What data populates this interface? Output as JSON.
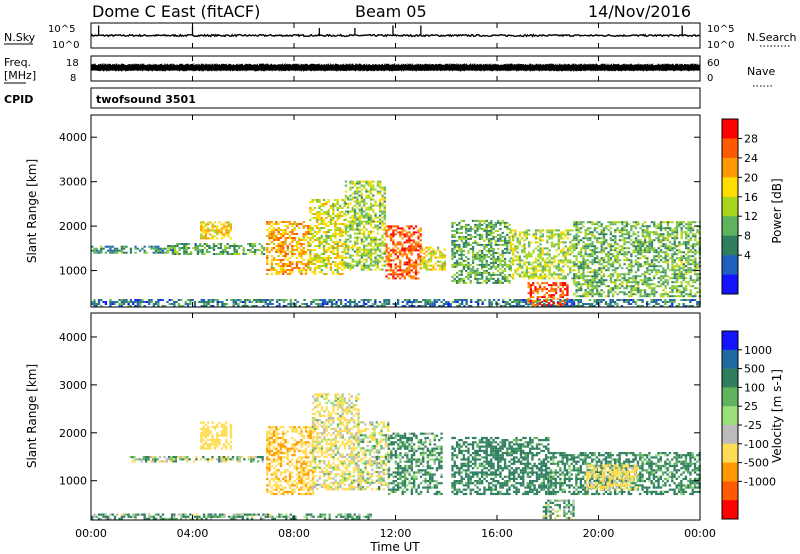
{
  "header": {
    "radar": "Dome C East (fitACF)",
    "beam": "Beam 05",
    "date": "14/Nov/2016"
  },
  "top_strips": {
    "nsky_label": "N.Sky",
    "nsearch_label": "N.Search",
    "nsky_ticks": [
      "10^5",
      "10^0"
    ],
    "nsearch_ticks": [
      "10^5",
      "10^0"
    ],
    "freq_label": "Freq.",
    "freq_unit": "[MHz]",
    "freq_ticks": [
      "18",
      "8"
    ],
    "nave_label": "Nave",
    "nave_ticks": [
      "60",
      "0"
    ],
    "cpid_label": "CPID",
    "cpid_value": "twofsound 3501"
  },
  "panels": {
    "ylabel": "Slant Range [km]",
    "yticks": [
      "4000",
      "3000",
      "2000",
      "1000"
    ],
    "xticks": [
      "00:00",
      "04:00",
      "08:00",
      "12:00",
      "16:00",
      "20:00",
      "00:00"
    ],
    "xlabel": "Time UT"
  },
  "power_scale": {
    "title": "Power [dB]",
    "ticks": [
      "28",
      "24",
      "20",
      "16",
      "12",
      "8",
      "4"
    ],
    "colors": [
      "#ff0000",
      "#ff5a00",
      "#ff9a00",
      "#ffdd00",
      "#a8d51e",
      "#5fb35f",
      "#2f7f5f",
      "#1f5fbf",
      "#1414ff"
    ]
  },
  "velocity_scale": {
    "title": "Velocity [m s-1]",
    "ticks": [
      "1000",
      "500",
      "100",
      "25",
      "-25",
      "-100",
      "-500",
      "-1000"
    ],
    "colors": [
      "#1414ff",
      "#1f6aa0",
      "#2f7f5f",
      "#5fb35f",
      "#9be07a",
      "#bbbbbb",
      "#ffdd55",
      "#ff9a00",
      "#ff5a00",
      "#ff0000"
    ]
  },
  "chart_data": [
    {
      "type": "line",
      "title": "N.Sky / N.Search",
      "x_range_hours": [
        0,
        24
      ],
      "ylim_log10": [
        0,
        5
      ],
      "y_baseline_log10": 2.5,
      "spikes": [
        {
          "x": 0.3,
          "y": 4.5
        },
        {
          "x": 4.0,
          "y": 4.5
        },
        {
          "x": 9.0,
          "y": 4.0
        },
        {
          "x": 10.4,
          "y": 4.0
        },
        {
          "x": 11.9,
          "y": 4.5
        },
        {
          "x": 13.0,
          "y": 4.5
        },
        {
          "x": 23.3,
          "y": 4.5
        }
      ]
    },
    {
      "type": "line",
      "title": "Freq. / Nave",
      "x_range_hours": [
        0,
        24
      ],
      "freq_ylim_mhz": [
        8,
        18
      ],
      "nave_ylim": [
        0,
        60
      ],
      "freq_mhz": 12.5,
      "nave_band": [
        25,
        40
      ]
    },
    {
      "type": "heatmap",
      "title": "Power [dB]",
      "x_range_hours": [
        0,
        24
      ],
      "ylim_km": [
        180,
        4500
      ],
      "clim_db": [
        0,
        32
      ],
      "patches": [
        {
          "t0": 0.0,
          "t1": 3.0,
          "r0": 1380,
          "r1": 1520,
          "db": 10
        },
        {
          "t0": 3.0,
          "t1": 6.8,
          "r0": 1350,
          "r1": 1600,
          "db": 12
        },
        {
          "t0": 0.0,
          "t1": 24.0,
          "r0": 180,
          "r1": 330,
          "db": 8
        },
        {
          "t0": 4.3,
          "t1": 5.5,
          "r0": 1700,
          "r1": 2100,
          "db": 20
        },
        {
          "t0": 6.9,
          "t1": 8.6,
          "r0": 900,
          "r1": 2100,
          "db": 22
        },
        {
          "t0": 8.6,
          "t1": 10.0,
          "r0": 900,
          "r1": 2600,
          "db": 18
        },
        {
          "t0": 10.0,
          "t1": 11.6,
          "r0": 1000,
          "r1": 3000,
          "db": 15
        },
        {
          "t0": 11.6,
          "t1": 13.0,
          "r0": 800,
          "r1": 2000,
          "db": 27
        },
        {
          "t0": 13.0,
          "t1": 13.9,
          "r0": 1000,
          "r1": 1500,
          "db": 18
        },
        {
          "t0": 14.2,
          "t1": 16.5,
          "r0": 700,
          "r1": 2100,
          "db": 12
        },
        {
          "t0": 16.5,
          "t1": 19.0,
          "r0": 800,
          "r1": 1900,
          "db": 16
        },
        {
          "t0": 17.2,
          "t1": 18.8,
          "r0": 200,
          "r1": 700,
          "db": 27
        },
        {
          "t0": 19.0,
          "t1": 24.0,
          "r0": 400,
          "r1": 2100,
          "db": 13
        }
      ]
    },
    {
      "type": "heatmap",
      "title": "Velocity [m s-1]",
      "x_range_hours": [
        0,
        24
      ],
      "ylim_km": [
        180,
        4500
      ],
      "clim_ms": [
        -1000,
        1000
      ],
      "patches": [
        {
          "t0": 1.5,
          "t1": 6.8,
          "r0": 1380,
          "r1": 1500,
          "v": 20
        },
        {
          "t0": 0.0,
          "t1": 11.0,
          "r0": 180,
          "r1": 300,
          "v": 90
        },
        {
          "t0": 4.3,
          "t1": 5.5,
          "r0": 1650,
          "r1": 2200,
          "v": -300
        },
        {
          "t0": 6.9,
          "t1": 8.7,
          "r0": 700,
          "r1": 2100,
          "v": -450
        },
        {
          "t0": 8.7,
          "t1": 10.5,
          "r0": 800,
          "r1": 2800,
          "v": -150
        },
        {
          "t0": 10.5,
          "t1": 11.7,
          "r0": 800,
          "r1": 2200,
          "v": -80
        },
        {
          "t0": 11.7,
          "t1": 13.8,
          "r0": 700,
          "r1": 2000,
          "v": 150
        },
        {
          "t0": 14.2,
          "t1": 18.0,
          "r0": 700,
          "r1": 1900,
          "v": 250
        },
        {
          "t0": 17.8,
          "t1": 19.0,
          "r0": 200,
          "r1": 600,
          "v": 60
        },
        {
          "t0": 18.0,
          "t1": 24.0,
          "r0": 700,
          "r1": 1600,
          "v": 200
        },
        {
          "t0": 19.5,
          "t1": 21.5,
          "r0": 800,
          "r1": 1300,
          "v": -200
        }
      ]
    }
  ]
}
